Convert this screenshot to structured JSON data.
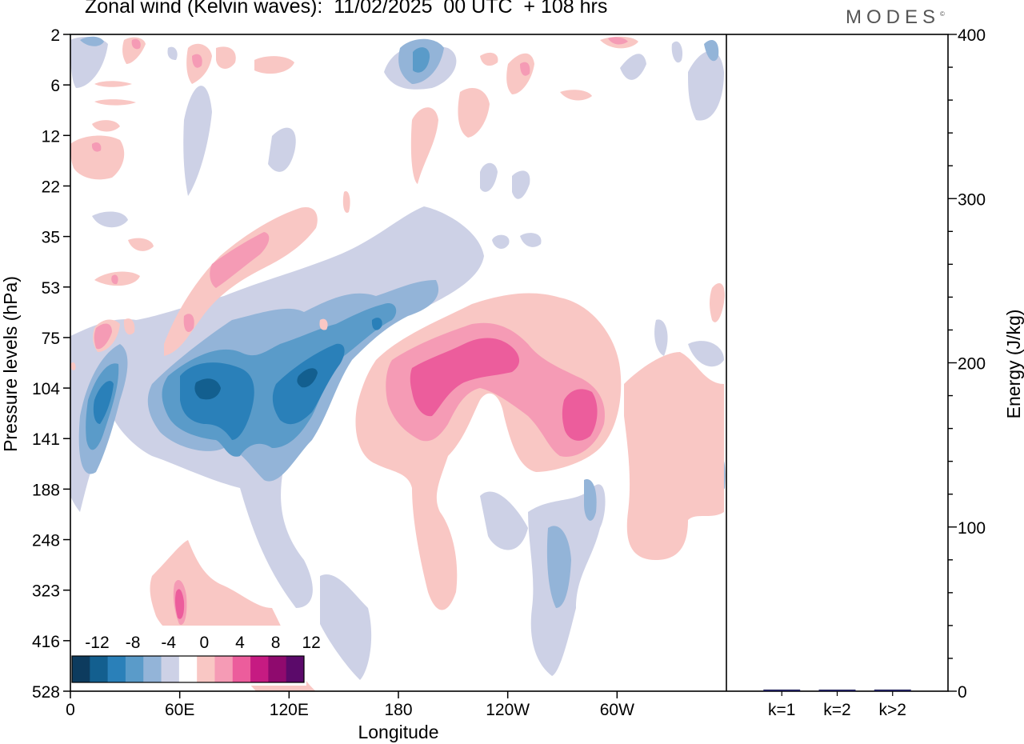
{
  "header": {
    "title": "Zonal wind (Kelvin waves):  11/02/2025  00 UTC  + 108 hrs",
    "brand": "MODES"
  },
  "chart_data": [
    {
      "type": "heatmap",
      "title": "Zonal wind (Kelvin waves):  11/02/2025  00 UTC  + 108 hrs",
      "xlabel": "Longitude",
      "ylabel": "Pressure levels (hPa)",
      "x_ticks": [
        "0",
        "60E",
        "120E",
        "180",
        "120W",
        "60W"
      ],
      "y_ticks": [
        "2",
        "6",
        "12",
        "22",
        "35",
        "53",
        "75",
        "104",
        "141",
        "188",
        "248",
        "323",
        "416",
        "528"
      ],
      "colorbar": {
        "labels": [
          "-12",
          "-8",
          "-4",
          "0",
          "4",
          "8",
          "12"
        ],
        "levels": [
          -14,
          -12,
          -10,
          -8,
          -6,
          -4,
          -2,
          2,
          4,
          6,
          8,
          10,
          12,
          14
        ],
        "colors": [
          "#0d3b5e",
          "#135f8f",
          "#2a80b9",
          "#5a9bc9",
          "#93b4d8",
          "#cdd1e6",
          "#ffffff",
          "#f9c7c4",
          "#f59bb5",
          "#ec5d9c",
          "#c61b82",
          "#8f0a6e",
          "#5b0a6a"
        ]
      },
      "features": [
        {
          "sign": "negative",
          "x_center": 80,
          "y_center": 104,
          "peak": -12
        },
        {
          "sign": "negative",
          "x_center": 125,
          "y_center": 104,
          "peak": -12
        },
        {
          "sign": "negative",
          "x_center": 15,
          "y_center": 141,
          "peak": -8
        },
        {
          "sign": "positive",
          "x_center": 200,
          "y_center": 104,
          "peak": 8
        },
        {
          "sign": "positive",
          "x_center": 240,
          "y_center": 75,
          "peak": 8
        },
        {
          "sign": "positive",
          "x_center": 280,
          "y_center": 104,
          "peak": 8
        },
        {
          "sign": "positive",
          "x_center": 85,
          "y_center": 323,
          "peak": 6
        },
        {
          "sign": "positive",
          "x_center": 105,
          "y_center": 35,
          "peak": 6
        }
      ]
    },
    {
      "type": "bar",
      "categories": [
        "k=1",
        "k=2",
        "k>2"
      ],
      "values": [
        1,
        0.5,
        1
      ],
      "ylabel": "Energy (J/kg)",
      "ylim": [
        0,
        400
      ],
      "y_ticks": [
        "0",
        "100",
        "200",
        "300",
        "400"
      ]
    }
  ]
}
